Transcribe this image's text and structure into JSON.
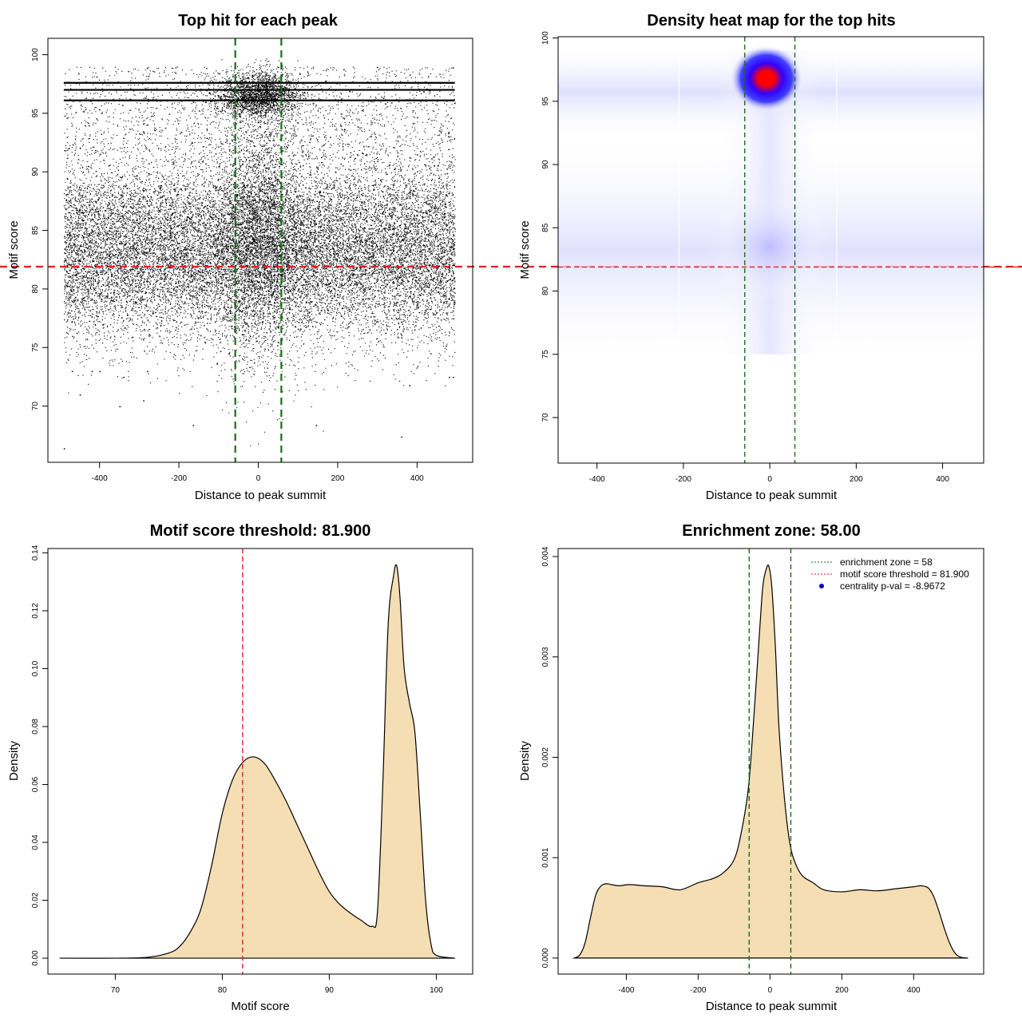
{
  "colors": {
    "threshold": "#dd2222",
    "zone": "#1b6b1b",
    "fill": "#f5deb3",
    "points": "#000000",
    "density_low": "#ffffff",
    "density_mid": "#0000ff",
    "density_high": "#ff0000"
  },
  "chart_data": [
    {
      "type": "scatter",
      "title": "Top hit for each peak",
      "xlabel": "Distance to peak summit",
      "ylabel": "Motif score",
      "xlim": [
        -530,
        540
      ],
      "ylim": [
        65.2,
        101.4
      ],
      "xticks": [
        -400,
        -200,
        0,
        200,
        400
      ],
      "yticks": [
        70,
        75,
        80,
        85,
        90,
        95,
        100
      ],
      "hlines": [
        81.9
      ],
      "vlines": [
        -58,
        58
      ],
      "x_range_points": [
        -490,
        495
      ],
      "dense_bands": [
        97.6,
        97.0,
        96.1
      ],
      "outliers": [
        {
          "x": -490,
          "y": 66.4
        },
        {
          "x": -470,
          "y": 73.0
        },
        {
          "x": -450,
          "y": 71.0
        },
        {
          "x": -350,
          "y": 70.0
        },
        {
          "x": -340,
          "y": 72.5
        },
        {
          "x": -290,
          "y": 70.5
        },
        {
          "x": -165,
          "y": 68.4
        },
        {
          "x": 145,
          "y": 68.4
        },
        {
          "x": 360,
          "y": 67.4
        },
        {
          "x": 380,
          "y": 71.8
        },
        {
          "x": 480,
          "y": 72.5
        },
        {
          "x": 490,
          "y": 72.5
        },
        {
          "x": -420,
          "y": 73.0
        },
        {
          "x": -400,
          "y": 73.0
        },
        {
          "x": -280,
          "y": 73.0
        }
      ]
    },
    {
      "type": "heatmap",
      "title": "Density heat map for the top hits",
      "xlabel": "Distance to peak summit",
      "ylabel": "Motif score",
      "xlim": [
        -490,
        495
      ],
      "ylim": [
        66.4,
        100.1
      ],
      "xticks": [
        -400,
        -200,
        0,
        200,
        400
      ],
      "yticks": [
        70,
        75,
        80,
        85,
        90,
        95,
        100
      ],
      "hlines": [
        81.9
      ],
      "vlines": [
        -58,
        58
      ],
      "hotspots": [
        {
          "x": -8,
          "y": 96.8,
          "weight": 1.0
        },
        {
          "x": 0,
          "y": 83.5,
          "weight": 0.25
        }
      ]
    },
    {
      "type": "area",
      "title": "Motif score threshold: 81.900",
      "xlabel": "Motif score",
      "ylabel": "Density",
      "xlim": [
        63.7,
        103.4
      ],
      "ylim": [
        -0.0055,
        0.1415
      ],
      "xticks": [
        70,
        80,
        90,
        100
      ],
      "yticks": [
        0.0,
        0.02,
        0.04,
        0.06,
        0.08,
        0.1,
        0.12,
        0.14
      ],
      "ytick_labels": [
        "0.00",
        "0.02",
        "0.04",
        "0.06",
        "0.08",
        "0.10",
        "0.12",
        "0.14"
      ],
      "vlines": [
        81.9
      ],
      "x": [
        64.8,
        70,
        73,
        75,
        76,
        77,
        78,
        79,
        80,
        81,
        82,
        83,
        84,
        85,
        86,
        87,
        88,
        89,
        90,
        91,
        92,
        93,
        94,
        94.5,
        95,
        95.5,
        96,
        96.3,
        96.6,
        97,
        97.5,
        98,
        98.5,
        99,
        99.5,
        100,
        101.7
      ],
      "y": [
        0,
        0,
        0.0003,
        0.0018,
        0.004,
        0.009,
        0.017,
        0.032,
        0.05,
        0.062,
        0.068,
        0.0695,
        0.067,
        0.061,
        0.054,
        0.046,
        0.038,
        0.03,
        0.023,
        0.0185,
        0.0155,
        0.013,
        0.011,
        0.016,
        0.06,
        0.115,
        0.132,
        0.1355,
        0.125,
        0.1,
        0.088,
        0.078,
        0.05,
        0.02,
        0.005,
        0.001,
        0
      ]
    },
    {
      "type": "area",
      "title": "Enrichment zone: 58.00",
      "xlabel": "Distance to peak summit",
      "ylabel": "Density",
      "xlim": [
        -590,
        595
      ],
      "ylim": [
        -0.00016,
        0.00408
      ],
      "xticks": [
        -400,
        -200,
        0,
        200,
        400
      ],
      "yticks": [
        0.0,
        0.001,
        0.002,
        0.003,
        0.004
      ],
      "ytick_labels": [
        "0.000",
        "0.001",
        "0.002",
        "0.003",
        "0.004"
      ],
      "vlines": [
        -58,
        58
      ],
      "legend": {
        "position": "top-right",
        "entries": [
          {
            "label": "enrichment zone = 58",
            "style": "dotted-line",
            "color": "#1b6b1b"
          },
          {
            "label": "motif score threshold = 81.900",
            "style": "dotted-line",
            "color": "#dd2222"
          },
          {
            "label": "centrality p-val = -8.9672",
            "style": "dot",
            "color": "#0000cc"
          }
        ]
      },
      "x": [
        -545,
        -530,
        -515,
        -500,
        -485,
        -470,
        -455,
        -440,
        -420,
        -400,
        -380,
        -350,
        -300,
        -250,
        -200,
        -160,
        -130,
        -100,
        -80,
        -60,
        -45,
        -30,
        -20,
        -10,
        -3,
        5,
        15,
        25,
        40,
        55,
        70,
        90,
        120,
        150,
        200,
        250,
        300,
        350,
        400,
        420,
        440,
        455,
        470,
        485,
        500,
        515,
        530,
        550
      ],
      "y": [
        0,
        3e-05,
        0.00015,
        0.0004,
        0.00063,
        0.00072,
        0.00074,
        0.00073,
        0.00072,
        0.00073,
        0.00073,
        0.00072,
        0.00071,
        0.00068,
        0.00075,
        0.00079,
        0.00085,
        0.00098,
        0.00125,
        0.0017,
        0.0024,
        0.0032,
        0.0037,
        0.00388,
        0.0039,
        0.0037,
        0.0031,
        0.0023,
        0.0016,
        0.00115,
        0.00095,
        0.00082,
        0.00075,
        0.00068,
        0.00066,
        0.00068,
        0.00067,
        0.00069,
        0.00071,
        0.00072,
        0.0007,
        0.00062,
        0.00047,
        0.0003,
        0.00015,
        5e-05,
        1e-05,
        0
      ]
    }
  ]
}
